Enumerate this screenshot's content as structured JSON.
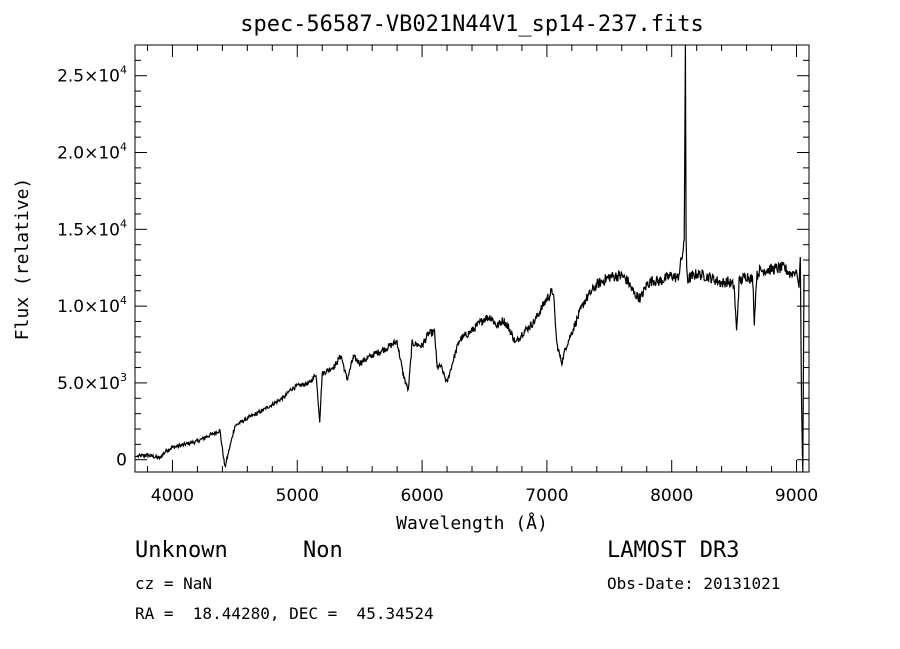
{
  "chart_data": {
    "type": "line",
    "title": "spec-56587-VB021N44V1_sp14-237.fits",
    "xlabel": "Wavelength (Å)",
    "ylabel": "Flux (relative)",
    "xlim": [
      3700,
      9100
    ],
    "ylim": [
      -800,
      27000
    ],
    "x_ticks": [
      4000,
      5000,
      6000,
      7000,
      8000,
      9000
    ],
    "x_tick_labels": [
      "4000",
      "5000",
      "6000",
      "7000",
      "8000",
      "9000"
    ],
    "y_ticks": [
      0,
      5000,
      10000,
      15000,
      20000,
      25000
    ],
    "y_tick_labels": [
      {
        "mant": "0",
        "exp": ""
      },
      {
        "mant": "5.0×10",
        "exp": "3"
      },
      {
        "mant": "1.0×10",
        "exp": "4"
      },
      {
        "mant": "1.5×10",
        "exp": "4"
      },
      {
        "mant": "2.0×10",
        "exp": "4"
      },
      {
        "mant": "2.5×10",
        "exp": "4"
      }
    ],
    "series": [
      {
        "name": "flux",
        "x": [
          3700,
          3800,
          3900,
          3950,
          4000,
          4100,
          4200,
          4300,
          4380,
          4420,
          4500,
          4600,
          4700,
          4800,
          4900,
          4950,
          5000,
          5100,
          5150,
          5180,
          5200,
          5300,
          5350,
          5400,
          5450,
          5500,
          5600,
          5700,
          5800,
          5850,
          5890,
          5920,
          6000,
          6050,
          6100,
          6120,
          6150,
          6200,
          6250,
          6300,
          6350,
          6400,
          6500,
          6550,
          6600,
          6650,
          6700,
          6750,
          6800,
          6900,
          7000,
          7050,
          7080,
          7120,
          7150,
          7200,
          7300,
          7400,
          7500,
          7600,
          7650,
          7700,
          7750,
          7800,
          7850,
          7900,
          8000,
          8050,
          8100,
          8110,
          8115,
          8120,
          8125,
          8130,
          8140,
          8200,
          8300,
          8400,
          8450,
          8500,
          8520,
          8540,
          8560,
          8600,
          8650,
          8662,
          8680,
          8700,
          8800,
          8900,
          8950,
          9000,
          9020,
          9030,
          9040,
          9050,
          9060
        ],
        "y": [
          200,
          300,
          100,
          600,
          800,
          1000,
          1200,
          1600,
          1900,
          -500,
          2200,
          2700,
          3100,
          3600,
          4100,
          4600,
          4800,
          5000,
          5600,
          2500,
          5600,
          6100,
          6800,
          5200,
          6700,
          6300,
          6800,
          7200,
          7700,
          5500,
          4500,
          7600,
          7400,
          8200,
          8300,
          6000,
          6100,
          5000,
          6500,
          7800,
          8100,
          8400,
          9200,
          9300,
          8700,
          9100,
          8500,
          7600,
          8200,
          9000,
          10500,
          11000,
          7500,
          6300,
          7300,
          8300,
          10300,
          11400,
          11900,
          12000,
          11600,
          10800,
          10500,
          11400,
          11700,
          11600,
          12000,
          11800,
          14000,
          27000,
          14500,
          12500,
          12000,
          11700,
          11800,
          12100,
          11900,
          11500,
          11600,
          11300,
          8300,
          11600,
          11700,
          12000,
          11700,
          9000,
          11900,
          12300,
          12400,
          12500,
          12100,
          12300,
          11200,
          13200,
          4000,
          -800,
          12000
        ]
      }
    ]
  },
  "info": {
    "object_type": "Unknown",
    "subclass": "Non",
    "survey": "LAMOST DR3",
    "redshift": "cz = NaN",
    "obs_date": "Obs-Date: 20131021",
    "coords": "RA =  18.44280, DEC =  45.34524"
  }
}
